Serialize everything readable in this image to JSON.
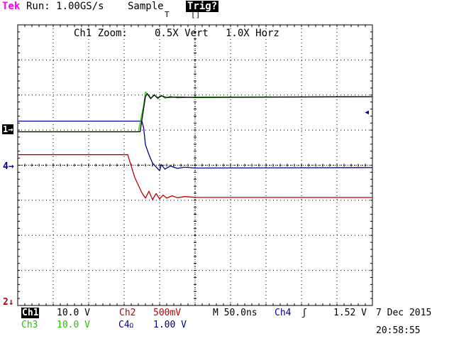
{
  "header": {
    "brand": "Tek",
    "run_status": "Run: 1.00GS/s",
    "acquisition": "Sample",
    "trigger_status": "Trig?",
    "trigger_position_mark": "T",
    "trigger_box": "[]"
  },
  "zoom": {
    "label": "Ch1 Zoom:",
    "vert": "0.5X Vert",
    "horz": "1.0X Horz"
  },
  "markers": {
    "ch1": "1→",
    "ch4": "4→",
    "ch2": "2↓",
    "trigger_level": "◂"
  },
  "status": {
    "ch1_label": "Ch1",
    "ch1_scale": "10.0 V",
    "ch2_label": "Ch2",
    "ch2_scale": "500mV",
    "ch3_label": "Ch3",
    "ch3_scale": "10.0 V",
    "ch4_label": "C4",
    "ch4_label_suffix": "Ω",
    "ch4_scale": "1.00 V",
    "timebase": "M 50.0ns",
    "trigger_source": "Ch4",
    "trigger_slope": "ʃ",
    "trigger_level": "1.52 V",
    "date": "7 Dec 2015",
    "time": "20:58:55"
  },
  "colors": {
    "ch1": "#000000",
    "ch2": "#c00000",
    "ch3": "#22c600",
    "ch4": "#00008b",
    "brand": "#ff00ff"
  },
  "chart_data": {
    "type": "line",
    "grid": true,
    "x_divisions": 10,
    "y_divisions": 8,
    "series": [
      {
        "name": "Ch1",
        "points": [
          [
            0,
            3.0
          ],
          [
            3.45,
            3.0
          ],
          [
            3.6,
            7.6
          ],
          [
            3.65,
            8.0
          ],
          [
            3.75,
            7.4
          ],
          [
            3.85,
            7.8
          ],
          [
            3.95,
            7.45
          ],
          [
            4.05,
            7.7
          ],
          [
            4.2,
            7.5
          ],
          [
            4.5,
            7.55
          ],
          [
            5,
            7.5
          ],
          [
            10,
            7.6
          ]
        ]
      },
      {
        "name": "Ch3",
        "points": [
          [
            0,
            3.0
          ],
          [
            3.4,
            3.0
          ],
          [
            3.55,
            6.5
          ],
          [
            3.6,
            8.2
          ],
          [
            3.65,
            8.0
          ],
          [
            3.75,
            7.3
          ],
          [
            3.85,
            7.9
          ],
          [
            3.95,
            7.3
          ],
          [
            4.05,
            7.8
          ],
          [
            4.15,
            7.4
          ],
          [
            4.3,
            7.65
          ],
          [
            4.5,
            7.45
          ],
          [
            5,
            7.55
          ],
          [
            10,
            7.6
          ]
        ]
      },
      {
        "name": "Ch4",
        "points": [
          [
            0,
            4.4
          ],
          [
            3.5,
            4.4
          ],
          [
            3.55,
            3.5
          ],
          [
            3.6,
            1.3
          ],
          [
            3.7,
            0.0
          ],
          [
            3.8,
            -1.1
          ],
          [
            3.9,
            -1.6
          ],
          [
            4.0,
            -2.1
          ],
          [
            4.05,
            -1.3
          ],
          [
            4.15,
            -1.9
          ],
          [
            4.3,
            -1.5
          ],
          [
            4.5,
            -1.8
          ],
          [
            4.7,
            -1.65
          ],
          [
            5,
            -1.75
          ],
          [
            10,
            -1.7
          ]
        ]
      },
      {
        "name": "Ch2",
        "points": [
          [
            0,
            0.0
          ],
          [
            3.1,
            0.0
          ],
          [
            3.3,
            -3.0
          ],
          [
            3.5,
            -5.0
          ],
          [
            3.6,
            -5.7
          ],
          [
            3.7,
            -4.8
          ],
          [
            3.8,
            -5.9
          ],
          [
            3.9,
            -5.1
          ],
          [
            4.0,
            -5.8
          ],
          [
            4.1,
            -5.3
          ],
          [
            4.2,
            -5.7
          ],
          [
            4.35,
            -5.4
          ],
          [
            4.5,
            -5.65
          ],
          [
            4.7,
            -5.5
          ],
          [
            5,
            -5.6
          ],
          [
            10,
            -5.62
          ]
        ]
      }
    ]
  }
}
